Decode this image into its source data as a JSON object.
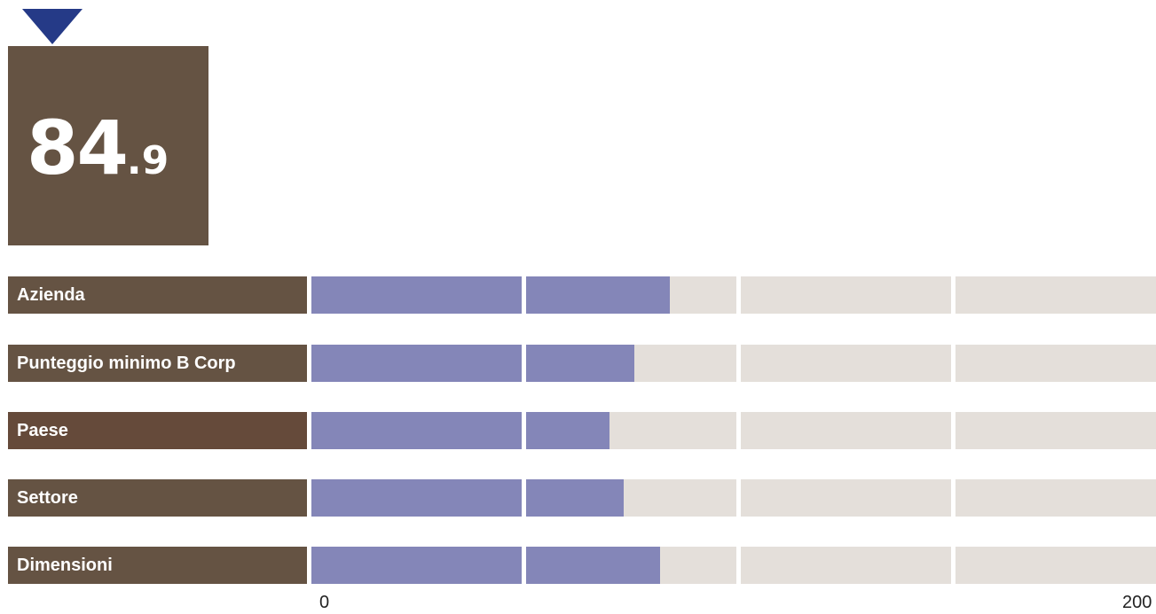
{
  "score": {
    "integer": "84",
    "decimal": ".9",
    "value": 84.9
  },
  "colors": {
    "marker": "#253a87",
    "score_box": "#655343",
    "label_default": "#655343",
    "label_highlight": "#654a3a",
    "bar_fill": "#8486b8",
    "bar_track": "#e4dfda"
  },
  "chart_data": {
    "type": "bar",
    "orientation": "horizontal",
    "categories": [
      "Azienda",
      "Punteggio minimo B Corp",
      "Paese",
      "Settore",
      "Dimensioni"
    ],
    "values": [
      84.9,
      76.5,
      70.5,
      74.0,
      82.5
    ],
    "xlim": [
      0,
      200
    ],
    "x_tick_labels": [
      "0",
      "200"
    ]
  }
}
